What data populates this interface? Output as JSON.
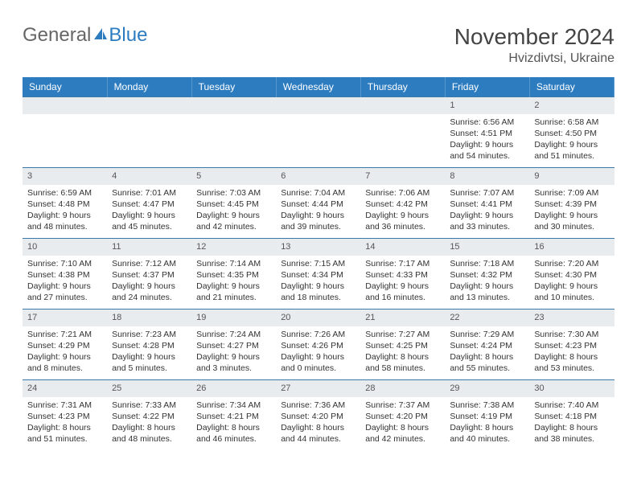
{
  "brand": {
    "part1": "General",
    "part2": "Blue"
  },
  "title": "November 2024",
  "location": "Hvizdivtsi, Ukraine",
  "colors": {
    "header_bg": "#2d7cc0",
    "header_fg": "#ffffff",
    "row_border": "#3a78a8",
    "daynum_bg": "#e9ecef",
    "logo_gray": "#666666",
    "logo_blue": "#2d7cc0"
  },
  "weekdays": [
    "Sunday",
    "Monday",
    "Tuesday",
    "Wednesday",
    "Thursday",
    "Friday",
    "Saturday"
  ],
  "weeks": [
    [
      null,
      null,
      null,
      null,
      null,
      {
        "n": "1",
        "sr": "6:56 AM",
        "ss": "4:51 PM",
        "dl": "9 hours and 54 minutes."
      },
      {
        "n": "2",
        "sr": "6:58 AM",
        "ss": "4:50 PM",
        "dl": "9 hours and 51 minutes."
      }
    ],
    [
      {
        "n": "3",
        "sr": "6:59 AM",
        "ss": "4:48 PM",
        "dl": "9 hours and 48 minutes."
      },
      {
        "n": "4",
        "sr": "7:01 AM",
        "ss": "4:47 PM",
        "dl": "9 hours and 45 minutes."
      },
      {
        "n": "5",
        "sr": "7:03 AM",
        "ss": "4:45 PM",
        "dl": "9 hours and 42 minutes."
      },
      {
        "n": "6",
        "sr": "7:04 AM",
        "ss": "4:44 PM",
        "dl": "9 hours and 39 minutes."
      },
      {
        "n": "7",
        "sr": "7:06 AM",
        "ss": "4:42 PM",
        "dl": "9 hours and 36 minutes."
      },
      {
        "n": "8",
        "sr": "7:07 AM",
        "ss": "4:41 PM",
        "dl": "9 hours and 33 minutes."
      },
      {
        "n": "9",
        "sr": "7:09 AM",
        "ss": "4:39 PM",
        "dl": "9 hours and 30 minutes."
      }
    ],
    [
      {
        "n": "10",
        "sr": "7:10 AM",
        "ss": "4:38 PM",
        "dl": "9 hours and 27 minutes."
      },
      {
        "n": "11",
        "sr": "7:12 AM",
        "ss": "4:37 PM",
        "dl": "9 hours and 24 minutes."
      },
      {
        "n": "12",
        "sr": "7:14 AM",
        "ss": "4:35 PM",
        "dl": "9 hours and 21 minutes."
      },
      {
        "n": "13",
        "sr": "7:15 AM",
        "ss": "4:34 PM",
        "dl": "9 hours and 18 minutes."
      },
      {
        "n": "14",
        "sr": "7:17 AM",
        "ss": "4:33 PM",
        "dl": "9 hours and 16 minutes."
      },
      {
        "n": "15",
        "sr": "7:18 AM",
        "ss": "4:32 PM",
        "dl": "9 hours and 13 minutes."
      },
      {
        "n": "16",
        "sr": "7:20 AM",
        "ss": "4:30 PM",
        "dl": "9 hours and 10 minutes."
      }
    ],
    [
      {
        "n": "17",
        "sr": "7:21 AM",
        "ss": "4:29 PM",
        "dl": "9 hours and 8 minutes."
      },
      {
        "n": "18",
        "sr": "7:23 AM",
        "ss": "4:28 PM",
        "dl": "9 hours and 5 minutes."
      },
      {
        "n": "19",
        "sr": "7:24 AM",
        "ss": "4:27 PM",
        "dl": "9 hours and 3 minutes."
      },
      {
        "n": "20",
        "sr": "7:26 AM",
        "ss": "4:26 PM",
        "dl": "9 hours and 0 minutes."
      },
      {
        "n": "21",
        "sr": "7:27 AM",
        "ss": "4:25 PM",
        "dl": "8 hours and 58 minutes."
      },
      {
        "n": "22",
        "sr": "7:29 AM",
        "ss": "4:24 PM",
        "dl": "8 hours and 55 minutes."
      },
      {
        "n": "23",
        "sr": "7:30 AM",
        "ss": "4:23 PM",
        "dl": "8 hours and 53 minutes."
      }
    ],
    [
      {
        "n": "24",
        "sr": "7:31 AM",
        "ss": "4:23 PM",
        "dl": "8 hours and 51 minutes."
      },
      {
        "n": "25",
        "sr": "7:33 AM",
        "ss": "4:22 PM",
        "dl": "8 hours and 48 minutes."
      },
      {
        "n": "26",
        "sr": "7:34 AM",
        "ss": "4:21 PM",
        "dl": "8 hours and 46 minutes."
      },
      {
        "n": "27",
        "sr": "7:36 AM",
        "ss": "4:20 PM",
        "dl": "8 hours and 44 minutes."
      },
      {
        "n": "28",
        "sr": "7:37 AM",
        "ss": "4:20 PM",
        "dl": "8 hours and 42 minutes."
      },
      {
        "n": "29",
        "sr": "7:38 AM",
        "ss": "4:19 PM",
        "dl": "8 hours and 40 minutes."
      },
      {
        "n": "30",
        "sr": "7:40 AM",
        "ss": "4:18 PM",
        "dl": "8 hours and 38 minutes."
      }
    ]
  ],
  "labels": {
    "sunrise": "Sunrise:",
    "sunset": "Sunset:",
    "daylight": "Daylight:"
  }
}
